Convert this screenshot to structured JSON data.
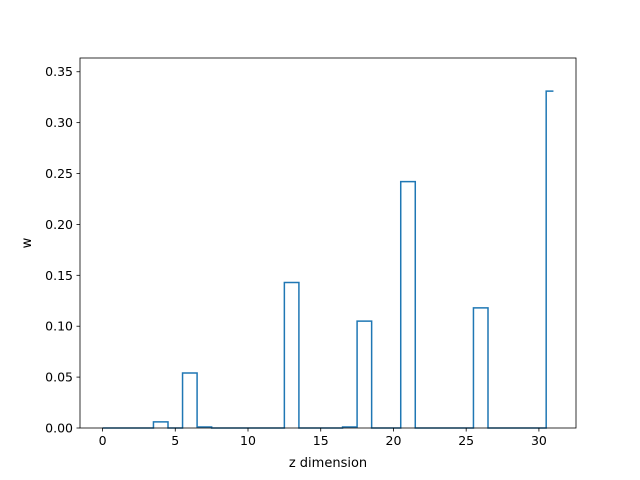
{
  "chart_data": {
    "type": "line",
    "drawstyle": "steps-mid",
    "title": "",
    "xlabel": "z dimension",
    "ylabel": "w",
    "xlim": [
      -1.55,
      32.55
    ],
    "ylim": [
      0,
      0.3635
    ],
    "xticks": [
      0,
      5,
      10,
      15,
      20,
      25,
      30
    ],
    "yticks": [
      0.0,
      0.05,
      0.1,
      0.15,
      0.2,
      0.25,
      0.3,
      0.35
    ],
    "ytick_labels": [
      "0.00",
      "0.05",
      "0.10",
      "0.15",
      "0.20",
      "0.25",
      "0.30",
      "0.35"
    ],
    "grid": false,
    "legend": "none",
    "line_color": "#1f77b4",
    "series": [
      {
        "x": [
          0,
          1,
          2,
          3,
          4,
          5,
          6,
          7,
          8,
          9,
          10,
          11,
          12,
          13,
          14,
          15,
          16,
          17,
          18,
          19,
          20,
          21,
          22,
          23,
          24,
          25,
          26,
          27,
          28,
          29,
          30,
          31
        ],
        "values": [
          0,
          0,
          0,
          0,
          0.006,
          0,
          0.054,
          0.001,
          0,
          0,
          0,
          0,
          0,
          0.143,
          0,
          0,
          0,
          0.001,
          0.105,
          0,
          0,
          0.242,
          0,
          0,
          0,
          0,
          0.118,
          0,
          0,
          0,
          0,
          0.331
        ]
      }
    ]
  }
}
